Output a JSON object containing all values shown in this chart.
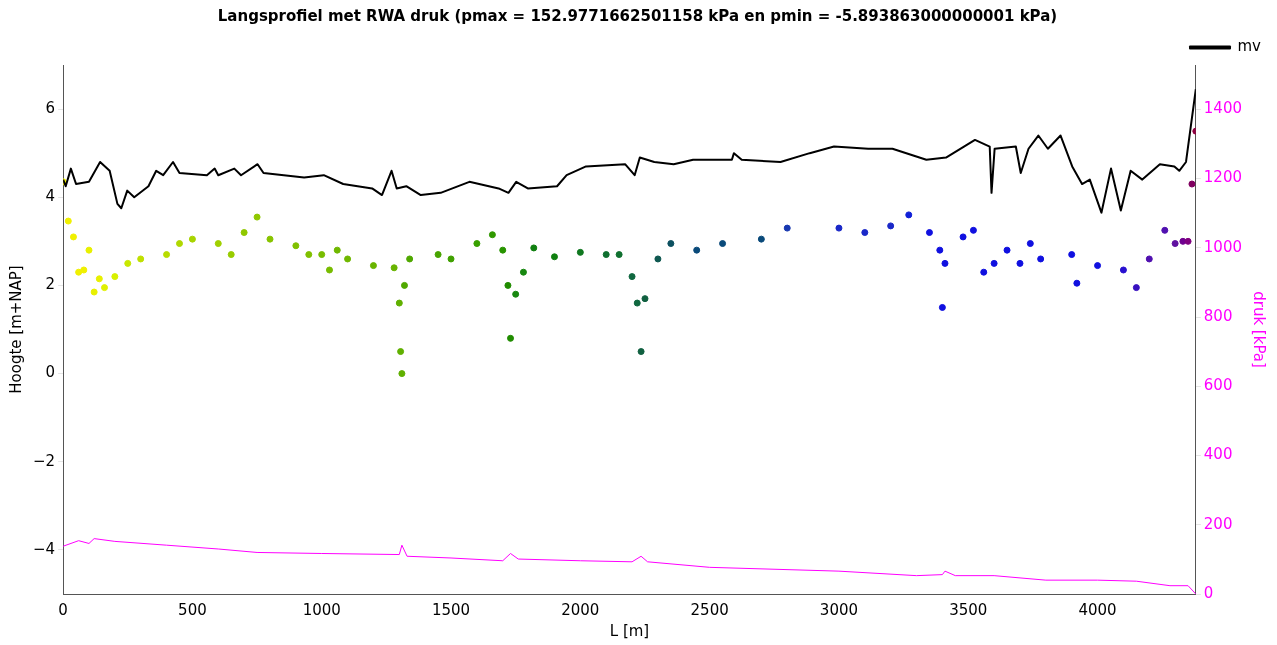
{
  "chart_data": {
    "type": "line",
    "title": "Langsprofiel met RWA druk (pmax = 152.9771662501158 kPa en pmin = -5.893863000000001 kPa)",
    "xlabel": "L [m]",
    "ylabel": "Hoogte [m+NAP]",
    "y2label": "druk [kPa]",
    "xlim": [
      0,
      4380
    ],
    "xticks": [
      0,
      500,
      1000,
      1500,
      2000,
      2500,
      3000,
      3500,
      4000
    ],
    "ylim": [
      -5,
      7
    ],
    "yticks": [
      {
        "value": -4,
        "label": "−4"
      },
      {
        "value": -2,
        "label": "−2"
      },
      0,
      2,
      4,
      6
    ],
    "y2lim": [
      0,
      1528
    ],
    "y2ticks": [
      0,
      200,
      400,
      600,
      800,
      1000,
      1200,
      1400
    ],
    "grid": false,
    "legend": "top right",
    "series": [
      {
        "name": "mv",
        "type": "line",
        "color": "#000000",
        "marker": "none",
        "x": [
          0,
          10,
          30,
          50,
          100,
          143,
          180,
          210,
          225,
          248,
          275,
          330,
          360,
          387,
          425,
          450,
          556,
          586,
          600,
          662,
          688,
          752,
          775,
          932,
          1008,
          1083,
          1195,
          1233,
          1270,
          1290,
          1327,
          1383,
          1460,
          1571,
          1684,
          1722,
          1752,
          1797,
          1910,
          1947,
          2022,
          2173,
          2210,
          2230,
          2286,
          2361,
          2436,
          2586,
          2594,
          2624,
          2774,
          2887,
          2981,
          3113,
          3207,
          3338,
          3414,
          3526,
          3583,
          3590,
          3602,
          3684,
          3703,
          3733,
          3771,
          3808,
          3857,
          3902,
          3940,
          3970,
          4015,
          4052,
          4090,
          4128,
          4173,
          4241,
          4297,
          4316,
          4342,
          4365,
          4380
        ],
        "values": [
          4.4,
          4.25,
          4.65,
          4.3,
          4.35,
          4.8,
          4.6,
          3.85,
          3.75,
          4.15,
          4.0,
          4.25,
          4.6,
          4.5,
          4.8,
          4.55,
          4.5,
          4.65,
          4.5,
          4.65,
          4.5,
          4.75,
          4.55,
          4.45,
          4.5,
          4.3,
          4.2,
          4.05,
          4.6,
          4.2,
          4.25,
          4.05,
          4.1,
          4.35,
          4.2,
          4.1,
          4.35,
          4.2,
          4.25,
          4.5,
          4.7,
          4.75,
          4.5,
          4.9,
          4.8,
          4.75,
          4.85,
          4.85,
          5.0,
          4.85,
          4.8,
          5.0,
          5.15,
          5.1,
          5.1,
          4.85,
          4.9,
          5.3,
          5.15,
          4.1,
          5.1,
          5.15,
          4.55,
          5.1,
          5.4,
          5.1,
          5.4,
          4.7,
          4.3,
          4.4,
          3.65,
          4.65,
          3.7,
          4.6,
          4.4,
          4.75,
          4.7,
          4.6,
          4.8,
          5.8,
          6.45
        ]
      },
      {
        "type": "scatter",
        "marker": "circle",
        "x": [
          0,
          20,
          40,
          60,
          80,
          100,
          120,
          140,
          160,
          200,
          250,
          300,
          400,
          450,
          500,
          600,
          650,
          700,
          750,
          800,
          900,
          950,
          1000,
          1030,
          1060,
          1100,
          1200,
          1280,
          1300,
          1305,
          1310,
          1320,
          1340,
          1450,
          1500,
          1600,
          1660,
          1700,
          1720,
          1730,
          1750,
          1780,
          1820,
          1900,
          2000,
          2100,
          2150,
          2200,
          2220,
          2235,
          2250,
          2300,
          2350,
          2450,
          2550,
          2700,
          2800,
          3000,
          3100,
          3200,
          3270,
          3350,
          3390,
          3400,
          3410,
          3480,
          3520,
          3560,
          3600,
          3650,
          3700,
          3740,
          3780,
          3900,
          3920,
          4000,
          4100,
          4150,
          4200,
          4260,
          4300,
          4330,
          4350,
          4365,
          4380
        ],
        "values": [
          4.35,
          3.46,
          3.1,
          2.3,
          2.35,
          2.8,
          1.85,
          2.15,
          1.95,
          2.2,
          2.5,
          2.6,
          2.7,
          2.95,
          3.05,
          2.95,
          2.7,
          3.2,
          3.55,
          3.05,
          2.9,
          2.7,
          2.7,
          2.35,
          2.8,
          2.6,
          2.45,
          2.4,
          1.6,
          0.5,
          0.0,
          2.0,
          2.6,
          2.7,
          2.6,
          2.95,
          3.15,
          2.8,
          2.0,
          0.8,
          1.8,
          2.3,
          2.85,
          2.65,
          2.75,
          2.7,
          2.7,
          2.2,
          1.6,
          0.5,
          1.7,
          2.6,
          2.95,
          2.8,
          2.95,
          3.05,
          3.3,
          3.3,
          3.2,
          3.35,
          3.6,
          3.2,
          2.8,
          1.5,
          2.5,
          3.1,
          3.25,
          2.3,
          2.5,
          2.8,
          2.5,
          2.95,
          2.6,
          2.7,
          2.05,
          2.45,
          2.35,
          1.95,
          2.6,
          3.25,
          2.95,
          3.0,
          3.0,
          4.3,
          5.5
        ],
        "colors": [
          "#f0f000",
          "#f0f000",
          "#f0f000",
          "#f0f000",
          "#f0f000",
          "#e8f000",
          "#e8f000",
          "#e8f000",
          "#e0f000",
          "#d8f000",
          "#c8e800",
          "#c0e000",
          "#b8dc00",
          "#b0d800",
          "#a8d400",
          "#a0d000",
          "#98cc00",
          "#90c800",
          "#90c800",
          "#88c400",
          "#80c000",
          "#80c000",
          "#78bc00",
          "#78bc00",
          "#70b800",
          "#70b800",
          "#68b400",
          "#68b400",
          "#60b000",
          "#60b000",
          "#60b000",
          "#50a800",
          "#50a800",
          "#48a400",
          "#40a000",
          "#38a000",
          "#309800",
          "#289400",
          "#208c00",
          "#208c00",
          "#188810",
          "#188810",
          "#108010",
          "#108010",
          "#107820",
          "#107030",
          "#107030",
          "#106840",
          "#106840",
          "#106040",
          "#106040",
          "#0e5850",
          "#0c5060",
          "#0a4a7a",
          "#0a4a7a",
          "#0a4a7a",
          "#1838b0",
          "#1a28c8",
          "#1a28c8",
          "#1a28c8",
          "#1020d8",
          "#1010e0",
          "#1010e0",
          "#1010e0",
          "#1010e0",
          "#1010e0",
          "#1010e0",
          "#1010e0",
          "#1010e0",
          "#1010e0",
          "#1010e0",
          "#1010e0",
          "#1010e0",
          "#1010e0",
          "#1010e0",
          "#1010e0",
          "#2810d0",
          "#3810c0",
          "#5010b0",
          "#5010b0",
          "#6010a0",
          "#700090",
          "#800080",
          "#800060",
          "#900040"
        ]
      },
      {
        "type": "line",
        "axis": "y2",
        "color": "#ff00ff",
        "marker": "none",
        "x": [
          0,
          60,
          100,
          120,
          200,
          400,
          600,
          750,
          1000,
          1300,
          1310,
          1330,
          1500,
          1700,
          1730,
          1760,
          2000,
          2200,
          2235,
          2260,
          2500,
          3000,
          3300,
          3400,
          3410,
          3450,
          3600,
          3800,
          4000,
          4150,
          4280,
          4350,
          4380
        ],
        "values": [
          138,
          154,
          146,
          160,
          152,
          141,
          130,
          120,
          117,
          114,
          141,
          109,
          104,
          96,
          117,
          101,
          96,
          93,
          109,
          93,
          77,
          66,
          53,
          56,
          66,
          53,
          53,
          40,
          40,
          37,
          24,
          24,
          0
        ]
      }
    ]
  }
}
